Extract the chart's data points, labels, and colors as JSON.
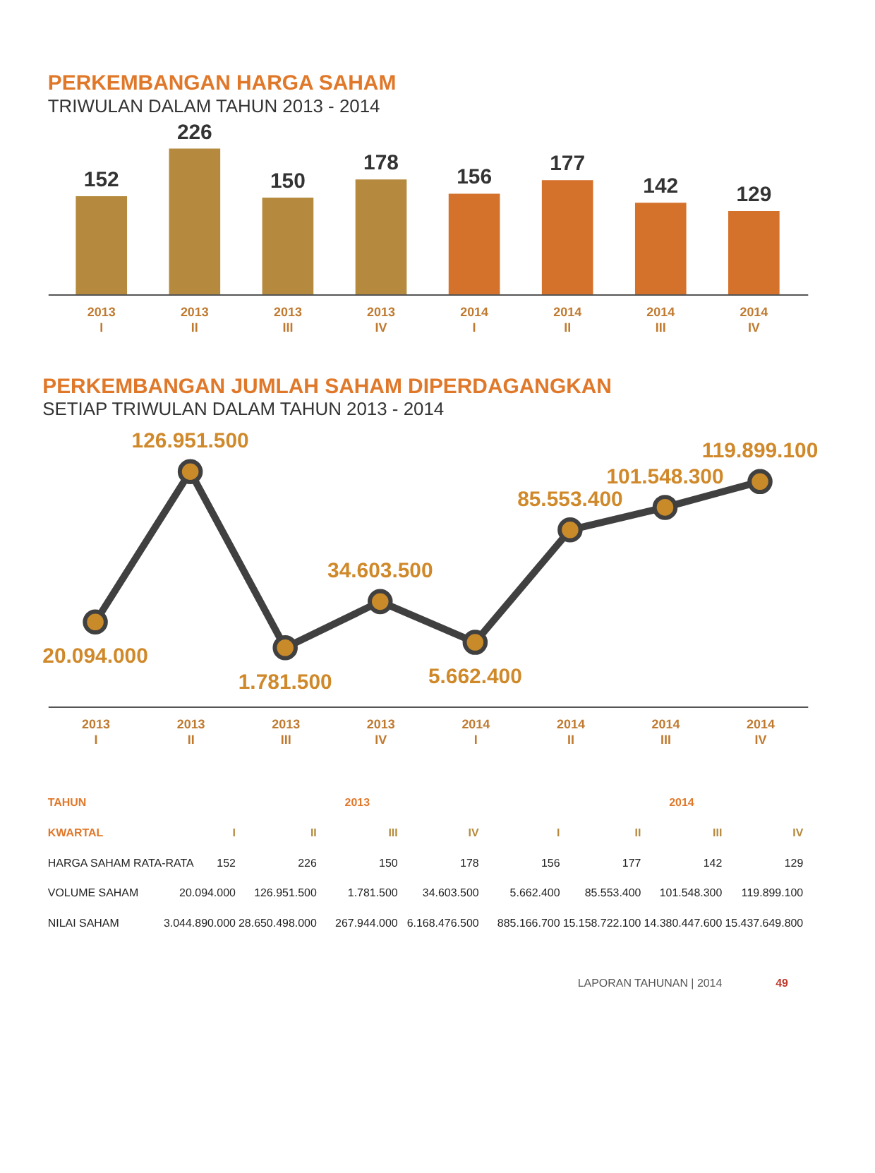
{
  "chart_data": [
    {
      "type": "bar",
      "title": "PERKEMBANGAN HARGA SAHAM",
      "subtitle": "TRIWULAN DALAM TAHUN 2013 - 2014",
      "categories": [
        "2013 I",
        "2013 II",
        "2013 III",
        "2013 IV",
        "2014 I",
        "2014 II",
        "2014 III",
        "2014 IV"
      ],
      "values": [
        152,
        226,
        150,
        178,
        156,
        177,
        142,
        129
      ],
      "colors": [
        "#b58a3e",
        "#b58a3e",
        "#b58a3e",
        "#b58a3e",
        "#d4712b",
        "#d4712b",
        "#d4712b",
        "#d4712b"
      ],
      "data_labels": true
    },
    {
      "type": "line",
      "title": "PERKEMBANGAN JUMLAH SAHAM DIPERDAGANGKAN",
      "subtitle": "SETIAP TRIWULAN DALAM TAHUN 2013 - 2014",
      "categories": [
        "2013 I",
        "2013 II",
        "2013 III",
        "2013 IV",
        "2014 I",
        "2014 II",
        "2014 III",
        "2014 IV"
      ],
      "series": [
        {
          "color": "#404040",
          "values": [
            20094000,
            126951500,
            1781500,
            34603500,
            5662400,
            85553400,
            101548300,
            119899100
          ],
          "value_labels": [
            "20.094.000",
            "126.951.500",
            "1.781.500",
            "34.603.500",
            "5.662.400",
            "85.553.400",
            "101.548.300",
            "119.899.100"
          ]
        }
      ],
      "marker": "circle",
      "line_style": "solid"
    },
    {
      "type": "other",
      "annotations": [
        "TAHUN",
        "2013",
        "2014",
        "KWARTAL",
        "HARGA SAHAM RATA-RATA",
        "VOLUME SAHAM",
        "NILAI SAHAM",
        "LAPORAN TAHUNAN | 2014",
        "49"
      ],
      "categories": [
        "I",
        "II",
        "III",
        "IV",
        "I",
        "II",
        "III",
        "IV"
      ],
      "cell_labels": [
        [
          "152",
          "226",
          "150",
          "178",
          "156",
          "177",
          "142",
          "129"
        ],
        [
          "20.094.000",
          "126.951.500",
          "1.781.500",
          "34.603.500",
          "5.662.400",
          "85.553.400",
          "101.548.300",
          "119.899.100"
        ],
        [
          "3.044.890.000",
          "28.650.498.000",
          "267.944.000",
          "6.168.476.500",
          "885.166.700",
          "15.158.722.100",
          "14.380.447.600",
          "15.437.649.800"
        ]
      ]
    }
  ]
}
